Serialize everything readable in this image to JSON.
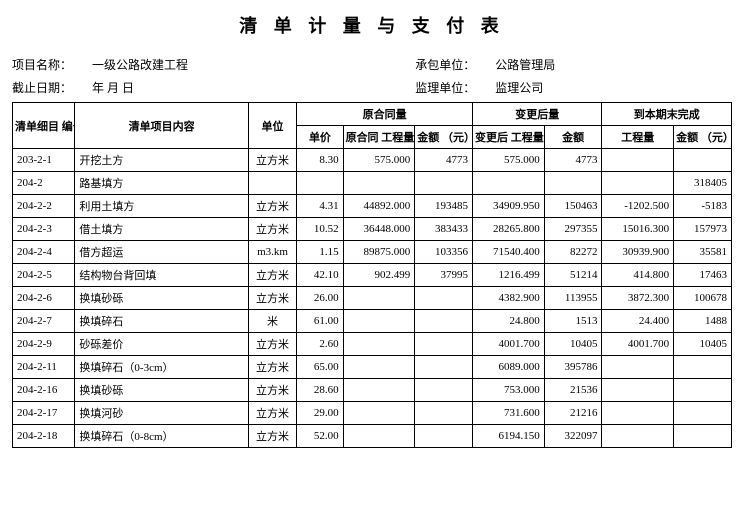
{
  "title": "清 单 计 量 与 支 付 表",
  "header": {
    "project_label": "项目名称：",
    "project_value": "一级公路改建工程",
    "contractor_label": "承包单位：",
    "contractor_value": "公路管理局",
    "deadline_label": "截止日期：",
    "deadline_value": "年  月  日",
    "supervisor_label": "监理单位：",
    "supervisor_value": "监理公司"
  },
  "columns": {
    "id": "清单细目\n编号",
    "name": "清单项目内容",
    "unit": "单位",
    "group1": "原合同量",
    "price": "单价",
    "qty1": "原合同\n工程量",
    "amt1": "金额\n（元）",
    "group2": "变更后量",
    "qty2": "变更后\n工程量",
    "amt2": "金额",
    "group3": "到本期末完成",
    "qty3": "工程量",
    "amt3": "金额\n（元）"
  },
  "rows": [
    {
      "id": "203-2-1",
      "name": "开挖土方",
      "unit": "立方米",
      "price": "8.30",
      "qty1": "575.000",
      "amt1": "4773",
      "qty2": "575.000",
      "amt2": "4773",
      "qty3": "",
      "amt3": ""
    },
    {
      "id": "204-2",
      "name": "路基填方",
      "unit": "",
      "price": "",
      "qty1": "",
      "amt1": "",
      "qty2": "",
      "amt2": "",
      "qty3": "",
      "amt3": "318405"
    },
    {
      "id": "204-2-2",
      "name": "利用土填方",
      "unit": "立方米",
      "price": "4.31",
      "qty1": "44892.000",
      "amt1": "193485",
      "qty2": "34909.950",
      "amt2": "150463",
      "qty3": "-1202.500",
      "amt3": "-5183"
    },
    {
      "id": "204-2-3",
      "name": "借土填方",
      "unit": "立方米",
      "price": "10.52",
      "qty1": "36448.000",
      "amt1": "383433",
      "qty2": "28265.800",
      "amt2": "297355",
      "qty3": "15016.300",
      "amt3": "157973"
    },
    {
      "id": "204-2-4",
      "name": "借方超运",
      "unit": "m3.km",
      "price": "1.15",
      "qty1": "89875.000",
      "amt1": "103356",
      "qty2": "71540.400",
      "amt2": "82272",
      "qty3": "30939.900",
      "amt3": "35581"
    },
    {
      "id": "204-2-5",
      "name": "结构物台背回填",
      "unit": "立方米",
      "price": "42.10",
      "qty1": "902.499",
      "amt1": "37995",
      "qty2": "1216.499",
      "amt2": "51214",
      "qty3": "414.800",
      "amt3": "17463"
    },
    {
      "id": "204-2-6",
      "name": "换填砂砾",
      "unit": "立方米",
      "price": "26.00",
      "qty1": "",
      "amt1": "",
      "qty2": "4382.900",
      "amt2": "113955",
      "qty3": "3872.300",
      "amt3": "100678"
    },
    {
      "id": "204-2-7",
      "name": "换填碎石",
      "unit": "米",
      "price": "61.00",
      "qty1": "",
      "amt1": "",
      "qty2": "24.800",
      "amt2": "1513",
      "qty3": "24.400",
      "amt3": "1488"
    },
    {
      "id": "204-2-9",
      "name": "砂砾差价",
      "unit": "立方米",
      "price": "2.60",
      "qty1": "",
      "amt1": "",
      "qty2": "4001.700",
      "amt2": "10405",
      "qty3": "4001.700",
      "amt3": "10405"
    },
    {
      "id": "204-2-11",
      "name": "换填碎石（0-3cm）",
      "unit": "立方米",
      "price": "65.00",
      "qty1": "",
      "amt1": "",
      "qty2": "6089.000",
      "amt2": "395786",
      "qty3": "",
      "amt3": ""
    },
    {
      "id": "204-2-16",
      "name": "换填砂砾",
      "unit": "立方米",
      "price": "28.60",
      "qty1": "",
      "amt1": "",
      "qty2": "753.000",
      "amt2": "21536",
      "qty3": "",
      "amt3": ""
    },
    {
      "id": "204-2-17",
      "name": "换填河砂",
      "unit": "立方米",
      "price": "29.00",
      "qty1": "",
      "amt1": "",
      "qty2": "731.600",
      "amt2": "21216",
      "qty3": "",
      "amt3": ""
    },
    {
      "id": "204-2-18",
      "name": "换填碎石（0-8cm）",
      "unit": "立方米",
      "price": "52.00",
      "qty1": "",
      "amt1": "",
      "qty2": "6194.150",
      "amt2": "322097",
      "qty3": "",
      "amt3": ""
    }
  ]
}
